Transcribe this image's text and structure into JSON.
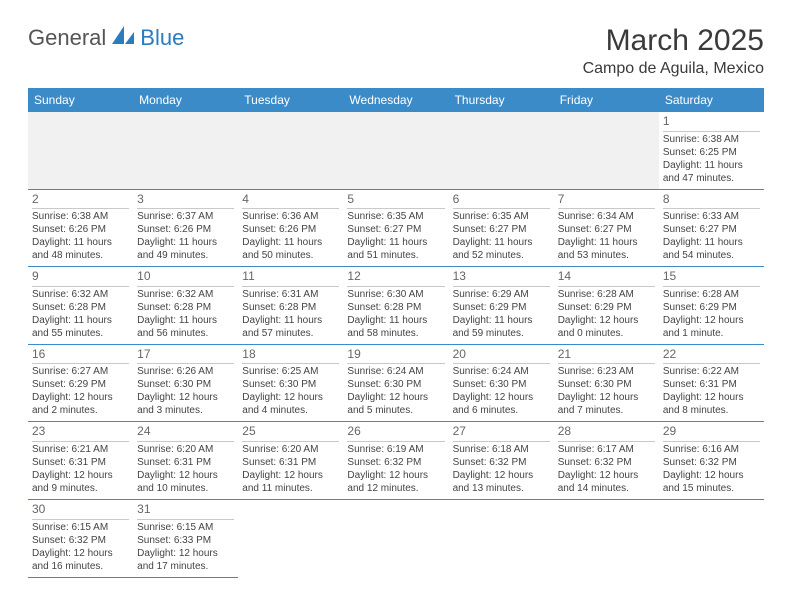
{
  "logo": {
    "text1": "General",
    "text2": "Blue",
    "sail_color": "#2b7bbf"
  },
  "header": {
    "title": "March 2025",
    "location": "Campo de Aguila, Mexico"
  },
  "theme": {
    "header_bg": "#3b8bc9",
    "header_text": "#ffffff",
    "border_color": "#3b8bc9",
    "daynum_border": "#c9c9c9",
    "body_text": "#444",
    "empty_bg": "#f1f1f1",
    "page_bg": "#ffffff"
  },
  "weekdays": [
    "Sunday",
    "Monday",
    "Tuesday",
    "Wednesday",
    "Thursday",
    "Friday",
    "Saturday"
  ],
  "weeks": [
    [
      null,
      null,
      null,
      null,
      null,
      null,
      {
        "day": "1",
        "sunrise": "Sunrise: 6:38 AM",
        "sunset": "Sunset: 6:25 PM",
        "daylight1": "Daylight: 11 hours",
        "daylight2": "and 47 minutes."
      }
    ],
    [
      {
        "day": "2",
        "sunrise": "Sunrise: 6:38 AM",
        "sunset": "Sunset: 6:26 PM",
        "daylight1": "Daylight: 11 hours",
        "daylight2": "and 48 minutes."
      },
      {
        "day": "3",
        "sunrise": "Sunrise: 6:37 AM",
        "sunset": "Sunset: 6:26 PM",
        "daylight1": "Daylight: 11 hours",
        "daylight2": "and 49 minutes."
      },
      {
        "day": "4",
        "sunrise": "Sunrise: 6:36 AM",
        "sunset": "Sunset: 6:26 PM",
        "daylight1": "Daylight: 11 hours",
        "daylight2": "and 50 minutes."
      },
      {
        "day": "5",
        "sunrise": "Sunrise: 6:35 AM",
        "sunset": "Sunset: 6:27 PM",
        "daylight1": "Daylight: 11 hours",
        "daylight2": "and 51 minutes."
      },
      {
        "day": "6",
        "sunrise": "Sunrise: 6:35 AM",
        "sunset": "Sunset: 6:27 PM",
        "daylight1": "Daylight: 11 hours",
        "daylight2": "and 52 minutes."
      },
      {
        "day": "7",
        "sunrise": "Sunrise: 6:34 AM",
        "sunset": "Sunset: 6:27 PM",
        "daylight1": "Daylight: 11 hours",
        "daylight2": "and 53 minutes."
      },
      {
        "day": "8",
        "sunrise": "Sunrise: 6:33 AM",
        "sunset": "Sunset: 6:27 PM",
        "daylight1": "Daylight: 11 hours",
        "daylight2": "and 54 minutes."
      }
    ],
    [
      {
        "day": "9",
        "sunrise": "Sunrise: 6:32 AM",
        "sunset": "Sunset: 6:28 PM",
        "daylight1": "Daylight: 11 hours",
        "daylight2": "and 55 minutes."
      },
      {
        "day": "10",
        "sunrise": "Sunrise: 6:32 AM",
        "sunset": "Sunset: 6:28 PM",
        "daylight1": "Daylight: 11 hours",
        "daylight2": "and 56 minutes."
      },
      {
        "day": "11",
        "sunrise": "Sunrise: 6:31 AM",
        "sunset": "Sunset: 6:28 PM",
        "daylight1": "Daylight: 11 hours",
        "daylight2": "and 57 minutes."
      },
      {
        "day": "12",
        "sunrise": "Sunrise: 6:30 AM",
        "sunset": "Sunset: 6:28 PM",
        "daylight1": "Daylight: 11 hours",
        "daylight2": "and 58 minutes."
      },
      {
        "day": "13",
        "sunrise": "Sunrise: 6:29 AM",
        "sunset": "Sunset: 6:29 PM",
        "daylight1": "Daylight: 11 hours",
        "daylight2": "and 59 minutes."
      },
      {
        "day": "14",
        "sunrise": "Sunrise: 6:28 AM",
        "sunset": "Sunset: 6:29 PM",
        "daylight1": "Daylight: 12 hours",
        "daylight2": "and 0 minutes."
      },
      {
        "day": "15",
        "sunrise": "Sunrise: 6:28 AM",
        "sunset": "Sunset: 6:29 PM",
        "daylight1": "Daylight: 12 hours",
        "daylight2": "and 1 minute."
      }
    ],
    [
      {
        "day": "16",
        "sunrise": "Sunrise: 6:27 AM",
        "sunset": "Sunset: 6:29 PM",
        "daylight1": "Daylight: 12 hours",
        "daylight2": "and 2 minutes."
      },
      {
        "day": "17",
        "sunrise": "Sunrise: 6:26 AM",
        "sunset": "Sunset: 6:30 PM",
        "daylight1": "Daylight: 12 hours",
        "daylight2": "and 3 minutes."
      },
      {
        "day": "18",
        "sunrise": "Sunrise: 6:25 AM",
        "sunset": "Sunset: 6:30 PM",
        "daylight1": "Daylight: 12 hours",
        "daylight2": "and 4 minutes."
      },
      {
        "day": "19",
        "sunrise": "Sunrise: 6:24 AM",
        "sunset": "Sunset: 6:30 PM",
        "daylight1": "Daylight: 12 hours",
        "daylight2": "and 5 minutes."
      },
      {
        "day": "20",
        "sunrise": "Sunrise: 6:24 AM",
        "sunset": "Sunset: 6:30 PM",
        "daylight1": "Daylight: 12 hours",
        "daylight2": "and 6 minutes."
      },
      {
        "day": "21",
        "sunrise": "Sunrise: 6:23 AM",
        "sunset": "Sunset: 6:30 PM",
        "daylight1": "Daylight: 12 hours",
        "daylight2": "and 7 minutes."
      },
      {
        "day": "22",
        "sunrise": "Sunrise: 6:22 AM",
        "sunset": "Sunset: 6:31 PM",
        "daylight1": "Daylight: 12 hours",
        "daylight2": "and 8 minutes."
      }
    ],
    [
      {
        "day": "23",
        "sunrise": "Sunrise: 6:21 AM",
        "sunset": "Sunset: 6:31 PM",
        "daylight1": "Daylight: 12 hours",
        "daylight2": "and 9 minutes."
      },
      {
        "day": "24",
        "sunrise": "Sunrise: 6:20 AM",
        "sunset": "Sunset: 6:31 PM",
        "daylight1": "Daylight: 12 hours",
        "daylight2": "and 10 minutes."
      },
      {
        "day": "25",
        "sunrise": "Sunrise: 6:20 AM",
        "sunset": "Sunset: 6:31 PM",
        "daylight1": "Daylight: 12 hours",
        "daylight2": "and 11 minutes."
      },
      {
        "day": "26",
        "sunrise": "Sunrise: 6:19 AM",
        "sunset": "Sunset: 6:32 PM",
        "daylight1": "Daylight: 12 hours",
        "daylight2": "and 12 minutes."
      },
      {
        "day": "27",
        "sunrise": "Sunrise: 6:18 AM",
        "sunset": "Sunset: 6:32 PM",
        "daylight1": "Daylight: 12 hours",
        "daylight2": "and 13 minutes."
      },
      {
        "day": "28",
        "sunrise": "Sunrise: 6:17 AM",
        "sunset": "Sunset: 6:32 PM",
        "daylight1": "Daylight: 12 hours",
        "daylight2": "and 14 minutes."
      },
      {
        "day": "29",
        "sunrise": "Sunrise: 6:16 AM",
        "sunset": "Sunset: 6:32 PM",
        "daylight1": "Daylight: 12 hours",
        "daylight2": "and 15 minutes."
      }
    ],
    [
      {
        "day": "30",
        "sunrise": "Sunrise: 6:15 AM",
        "sunset": "Sunset: 6:32 PM",
        "daylight1": "Daylight: 12 hours",
        "daylight2": "and 16 minutes."
      },
      {
        "day": "31",
        "sunrise": "Sunrise: 6:15 AM",
        "sunset": "Sunset: 6:33 PM",
        "daylight1": "Daylight: 12 hours",
        "daylight2": "and 17 minutes."
      },
      null,
      null,
      null,
      null,
      null
    ]
  ]
}
